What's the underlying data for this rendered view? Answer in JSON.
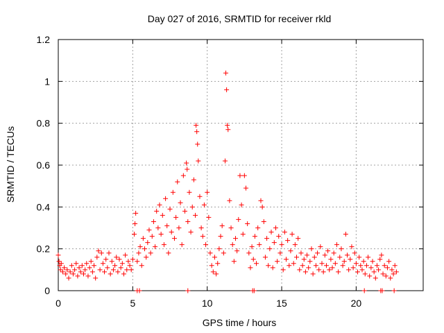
{
  "chart_data": {
    "type": "scatter",
    "title": "Day 027 of 2016, SRMTID for receiver rkld",
    "xlabel": "GPS time / hours",
    "ylabel": "SRMTID / TECUs",
    "xlim": [
      0,
      24.5
    ],
    "ylim": [
      0,
      1.2
    ],
    "xticks": [
      0,
      5,
      10,
      15,
      20
    ],
    "yticks": [
      0,
      0.2,
      0.4,
      0.6,
      0.8,
      1,
      1.2
    ],
    "xtick_labels": [
      "0",
      "5",
      "10",
      "15",
      "20"
    ],
    "ytick_labels": [
      "0",
      "0.2",
      "0.4",
      "0.6",
      "0.8",
      "1",
      "1.2"
    ],
    "grid": true,
    "marker": "+",
    "marker_color": "#ff0000",
    "series": [
      {
        "name": "SRMTID",
        "points": [
          [
            0.0,
            0.17
          ],
          [
            0.05,
            0.14
          ],
          [
            0.1,
            0.12
          ],
          [
            0.15,
            0.1
          ],
          [
            0.2,
            0.13
          ],
          [
            0.3,
            0.09
          ],
          [
            0.4,
            0.11
          ],
          [
            0.5,
            0.08
          ],
          [
            0.6,
            0.1
          ],
          [
            0.7,
            0.06
          ],
          [
            0.8,
            0.09
          ],
          [
            0.9,
            0.12
          ],
          [
            1.0,
            0.08
          ],
          [
            1.1,
            0.1
          ],
          [
            1.2,
            0.13
          ],
          [
            1.3,
            0.07
          ],
          [
            1.4,
            0.11
          ],
          [
            1.5,
            0.09
          ],
          [
            1.6,
            0.12
          ],
          [
            1.7,
            0.08
          ],
          [
            1.8,
            0.1
          ],
          [
            1.9,
            0.13
          ],
          [
            2.0,
            0.07
          ],
          [
            2.1,
            0.11
          ],
          [
            2.2,
            0.14
          ],
          [
            2.3,
            0.09
          ],
          [
            2.4,
            0.12
          ],
          [
            2.5,
            0.06
          ],
          [
            2.6,
            0.16
          ],
          [
            2.7,
            0.19
          ],
          [
            2.8,
            0.1
          ],
          [
            2.9,
            0.18
          ],
          [
            3.0,
            0.13
          ],
          [
            3.1,
            0.09
          ],
          [
            3.2,
            0.15
          ],
          [
            3.3,
            0.11
          ],
          [
            3.4,
            0.18
          ],
          [
            3.5,
            0.08
          ],
          [
            3.6,
            0.14
          ],
          [
            3.7,
            0.1
          ],
          [
            3.8,
            0.12
          ],
          [
            3.9,
            0.16
          ],
          [
            4.0,
            0.09
          ],
          [
            4.1,
            0.15
          ],
          [
            4.2,
            0.11
          ],
          [
            4.3,
            0.13
          ],
          [
            4.4,
            0.08
          ],
          [
            4.5,
            0.17
          ],
          [
            4.6,
            0.1
          ],
          [
            4.7,
            0.14
          ],
          [
            4.8,
            0.12
          ],
          [
            4.9,
            0.1
          ],
          [
            5.0,
            0.15
          ],
          [
            5.1,
            0.27
          ],
          [
            5.15,
            0.32
          ],
          [
            5.2,
            0.37
          ],
          [
            5.3,
            0.14
          ],
          [
            5.4,
            0.18
          ],
          [
            5.5,
            0.21
          ],
          [
            5.6,
            0.12
          ],
          [
            5.7,
            0.25
          ],
          [
            5.8,
            0.2
          ],
          [
            5.9,
            0.16
          ],
          [
            6.0,
            0.23
          ],
          [
            6.1,
            0.29
          ],
          [
            6.2,
            0.18
          ],
          [
            6.3,
            0.26
          ],
          [
            6.4,
            0.33
          ],
          [
            6.5,
            0.21
          ],
          [
            6.6,
            0.38
          ],
          [
            6.7,
            0.3
          ],
          [
            6.8,
            0.41
          ],
          [
            6.9,
            0.27
          ],
          [
            7.0,
            0.36
          ],
          [
            7.1,
            0.22
          ],
          [
            7.2,
            0.44
          ],
          [
            7.3,
            0.31
          ],
          [
            7.4,
            0.18
          ],
          [
            7.5,
            0.39
          ],
          [
            7.6,
            0.28
          ],
          [
            7.7,
            0.47
          ],
          [
            7.8,
            0.25
          ],
          [
            7.9,
            0.35
          ],
          [
            8.0,
            0.52
          ],
          [
            8.1,
            0.3
          ],
          [
            8.2,
            0.42
          ],
          [
            8.3,
            0.22
          ],
          [
            8.4,
            0.55
          ],
          [
            8.5,
            0.38
          ],
          [
            8.6,
            0.61
          ],
          [
            8.65,
            0.58
          ],
          [
            8.7,
            0.33
          ],
          [
            8.8,
            0.47
          ],
          [
            8.9,
            0.28
          ],
          [
            9.0,
            0.4
          ],
          [
            9.1,
            0.53
          ],
          [
            9.2,
            0.36
          ],
          [
            9.25,
            0.79
          ],
          [
            9.3,
            0.76
          ],
          [
            9.35,
            0.7
          ],
          [
            9.4,
            0.62
          ],
          [
            9.5,
            0.45
          ],
          [
            9.6,
            0.3
          ],
          [
            9.7,
            0.26
          ],
          [
            9.8,
            0.41
          ],
          [
            9.9,
            0.22
          ],
          [
            10.0,
            0.47
          ],
          [
            10.1,
            0.35
          ],
          [
            10.2,
            0.18
          ],
          [
            10.3,
            0.12
          ],
          [
            10.4,
            0.09
          ],
          [
            10.5,
            0.16
          ],
          [
            10.6,
            0.08
          ],
          [
            10.7,
            0.13
          ],
          [
            10.8,
            0.2
          ],
          [
            10.9,
            0.26
          ],
          [
            11.0,
            0.31
          ],
          [
            11.1,
            0.18
          ],
          [
            11.2,
            0.62
          ],
          [
            11.25,
            1.04
          ],
          [
            11.3,
            0.96
          ],
          [
            11.35,
            0.79
          ],
          [
            11.4,
            0.77
          ],
          [
            11.5,
            0.43
          ],
          [
            11.6,
            0.3
          ],
          [
            11.7,
            0.22
          ],
          [
            11.8,
            0.14
          ],
          [
            11.9,
            0.25
          ],
          [
            12.0,
            0.19
          ],
          [
            12.1,
            0.34
          ],
          [
            12.2,
            0.55
          ],
          [
            12.3,
            0.41
          ],
          [
            12.4,
            0.27
          ],
          [
            12.5,
            0.55
          ],
          [
            12.6,
            0.49
          ],
          [
            12.7,
            0.32
          ],
          [
            12.8,
            0.18
          ],
          [
            12.9,
            0.11
          ],
          [
            13.0,
            0.21
          ],
          [
            13.1,
            0.15
          ],
          [
            13.2,
            0.26
          ],
          [
            13.3,
            0.13
          ],
          [
            13.4,
            0.3
          ],
          [
            13.5,
            0.22
          ],
          [
            13.6,
            0.43
          ],
          [
            13.7,
            0.4
          ],
          [
            13.8,
            0.33
          ],
          [
            13.9,
            0.16
          ],
          [
            14.0,
            0.25
          ],
          [
            14.1,
            0.12
          ],
          [
            14.2,
            0.2
          ],
          [
            14.3,
            0.28
          ],
          [
            14.4,
            0.11
          ],
          [
            14.5,
            0.23
          ],
          [
            14.6,
            0.3
          ],
          [
            14.7,
            0.14
          ],
          [
            14.8,
            0.26
          ],
          [
            14.9,
            0.18
          ],
          [
            15.0,
            0.22
          ],
          [
            15.1,
            0.1
          ],
          [
            15.2,
            0.28
          ],
          [
            15.3,
            0.15
          ],
          [
            15.4,
            0.24
          ],
          [
            15.5,
            0.12
          ],
          [
            15.6,
            0.19
          ],
          [
            15.7,
            0.27
          ],
          [
            15.8,
            0.13
          ],
          [
            15.9,
            0.22
          ],
          [
            16.0,
            0.16
          ],
          [
            16.1,
            0.25
          ],
          [
            16.2,
            0.1
          ],
          [
            16.3,
            0.18
          ],
          [
            16.4,
            0.12
          ],
          [
            16.5,
            0.15
          ],
          [
            16.6,
            0.09
          ],
          [
            16.7,
            0.17
          ],
          [
            16.8,
            0.11
          ],
          [
            16.9,
            0.14
          ],
          [
            17.0,
            0.2
          ],
          [
            17.1,
            0.08
          ],
          [
            17.2,
            0.16
          ],
          [
            17.3,
            0.12
          ],
          [
            17.4,
            0.18
          ],
          [
            17.5,
            0.1
          ],
          [
            17.6,
            0.21
          ],
          [
            17.7,
            0.13
          ],
          [
            17.8,
            0.09
          ],
          [
            17.9,
            0.17
          ],
          [
            18.0,
            0.12
          ],
          [
            18.1,
            0.19
          ],
          [
            18.2,
            0.1
          ],
          [
            18.3,
            0.15
          ],
          [
            18.4,
            0.11
          ],
          [
            18.5,
            0.18
          ],
          [
            18.6,
            0.13
          ],
          [
            18.7,
            0.22
          ],
          [
            18.8,
            0.09
          ],
          [
            18.9,
            0.16
          ],
          [
            19.0,
            0.2
          ],
          [
            19.1,
            0.12
          ],
          [
            19.2,
            0.14
          ],
          [
            19.3,
            0.27
          ],
          [
            19.4,
            0.17
          ],
          [
            19.5,
            0.1
          ],
          [
            19.6,
            0.15
          ],
          [
            19.7,
            0.21
          ],
          [
            19.8,
            0.11
          ],
          [
            19.9,
            0.18
          ],
          [
            20.0,
            0.13
          ],
          [
            20.1,
            0.09
          ],
          [
            20.2,
            0.16
          ],
          [
            20.3,
            0.12
          ],
          [
            20.4,
            0.1
          ],
          [
            20.5,
            0.14
          ],
          [
            20.6,
            0.08
          ],
          [
            20.7,
            0.12
          ],
          [
            20.8,
            0.16
          ],
          [
            20.9,
            0.07
          ],
          [
            21.0,
            0.11
          ],
          [
            21.1,
            0.14
          ],
          [
            21.2,
            0.09
          ],
          [
            21.3,
            0.06
          ],
          [
            21.4,
            0.12
          ],
          [
            21.5,
            0.1
          ],
          [
            21.6,
            0.15
          ],
          [
            21.7,
            0.17
          ],
          [
            21.8,
            0.08
          ],
          [
            21.9,
            0.12
          ],
          [
            22.0,
            0.07
          ],
          [
            22.1,
            0.11
          ],
          [
            22.2,
            0.14
          ],
          [
            22.3,
            0.06
          ],
          [
            22.4,
            0.1
          ],
          [
            22.5,
            0.08
          ],
          [
            22.6,
            0.12
          ],
          [
            22.7,
            0.09
          ],
          [
            5.3,
            0.0
          ],
          [
            5.45,
            0.0
          ],
          [
            8.7,
            0.0
          ],
          [
            13.05,
            0.0
          ],
          [
            13.15,
            0.0
          ],
          [
            20.55,
            0.0
          ],
          [
            21.65,
            0.0
          ],
          [
            21.75,
            0.0
          ],
          [
            22.55,
            0.0
          ]
        ]
      }
    ]
  }
}
